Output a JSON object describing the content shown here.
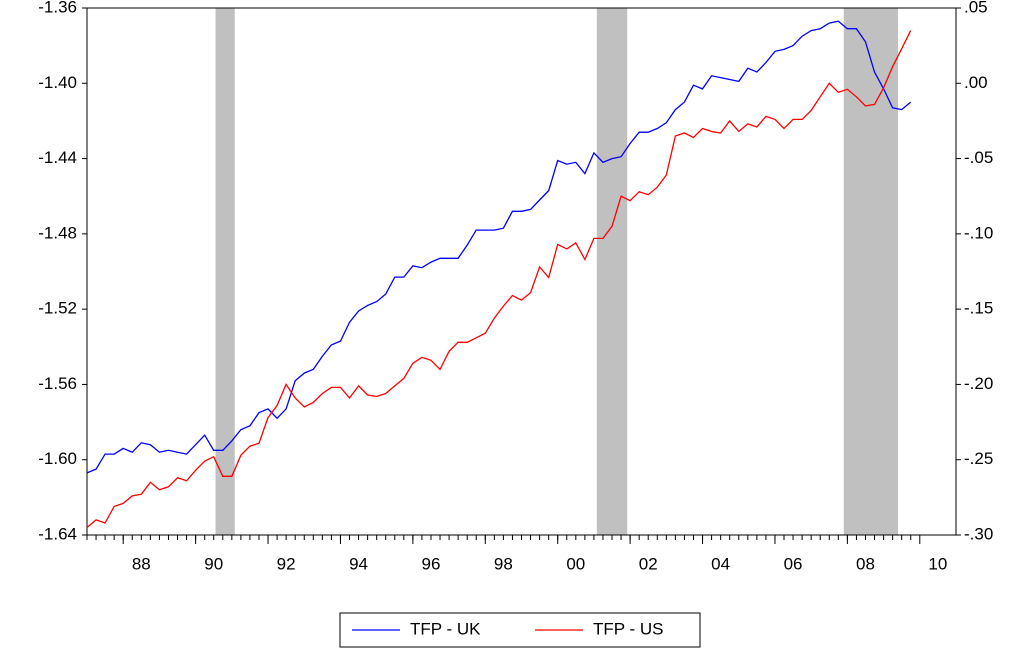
{
  "chart_data": {
    "type": "line",
    "x": [
      1987,
      1987.25,
      1987.5,
      1987.75,
      1988,
      1988.25,
      1988.5,
      1988.75,
      1989,
      1989.25,
      1989.5,
      1989.75,
      1990,
      1990.25,
      1990.5,
      1990.75,
      1991,
      1991.25,
      1991.5,
      1991.75,
      1992,
      1992.25,
      1992.5,
      1992.75,
      1993,
      1993.25,
      1993.5,
      1993.75,
      1994,
      1994.25,
      1994.5,
      1994.75,
      1995,
      1995.25,
      1995.5,
      1995.75,
      1996,
      1996.25,
      1996.5,
      1996.75,
      1997,
      1997.25,
      1997.5,
      1997.75,
      1998,
      1998.25,
      1998.5,
      1998.75,
      1999,
      1999.25,
      1999.5,
      1999.75,
      2000,
      2000.25,
      2000.5,
      2000.75,
      2001,
      2001.25,
      2001.5,
      2001.75,
      2002,
      2002.25,
      2002.5,
      2002.75,
      2003,
      2003.25,
      2003.5,
      2003.75,
      2004,
      2004.25,
      2004.5,
      2004.75,
      2005,
      2005.25,
      2005.5,
      2005.75,
      2006,
      2006.25,
      2006.5,
      2006.75,
      2007,
      2007.25,
      2007.5,
      2007.75,
      2008,
      2008.25,
      2008.5,
      2008.75,
      2009,
      2009.25,
      2009.5,
      2009.75
    ],
    "series": [
      {
        "name": "TFP - UK",
        "color": "#0000ff",
        "axis": "y",
        "values": [
          -1.607,
          -1.605,
          -1.597,
          -1.597,
          -1.594,
          -1.596,
          -1.591,
          -1.592,
          -1.596,
          -1.595,
          -1.596,
          -1.597,
          -1.592,
          -1.587,
          -1.595,
          -1.595,
          -1.59,
          -1.584,
          -1.582,
          -1.575,
          -1.573,
          -1.578,
          -1.573,
          -1.558,
          -1.554,
          -1.552,
          -1.545,
          -1.539,
          -1.537,
          -1.527,
          -1.521,
          -1.518,
          -1.516,
          -1.512,
          -1.503,
          -1.503,
          -1.497,
          -1.498,
          -1.495,
          -1.493,
          -1.493,
          -1.493,
          -1.486,
          -1.478,
          -1.478,
          -1.478,
          -1.477,
          -1.468,
          -1.468,
          -1.467,
          -1.462,
          -1.457,
          -1.441,
          -1.443,
          -1.442,
          -1.448,
          -1.437,
          -1.442,
          -1.44,
          -1.439,
          -1.432,
          -1.426,
          -1.426,
          -1.424,
          -1.421,
          -1.414,
          -1.41,
          -1.401,
          -1.403,
          -1.396,
          -1.397,
          -1.398,
          -1.399,
          -1.392,
          -1.394,
          -1.389,
          -1.383,
          -1.382,
          -1.38,
          -1.375,
          -1.372,
          -1.371,
          -1.368,
          -1.367,
          -1.371,
          -1.371,
          -1.378,
          -1.394,
          -1.403,
          -1.413,
          -1.414,
          -1.41
        ]
      },
      {
        "name": "TFP - US",
        "color": "#ff0000",
        "axis": "y2",
        "values": [
          -0.295,
          -0.29,
          -0.292,
          -0.281,
          -0.279,
          -0.274,
          -0.273,
          -0.265,
          -0.27,
          -0.268,
          -0.262,
          -0.264,
          -0.257,
          -0.251,
          -0.248,
          -0.261,
          -0.261,
          -0.247,
          -0.241,
          -0.239,
          -0.222,
          -0.214,
          -0.2,
          -0.209,
          -0.215,
          -0.212,
          -0.206,
          -0.202,
          -0.202,
          -0.209,
          -0.201,
          -0.207,
          -0.208,
          -0.206,
          -0.201,
          -0.196,
          -0.186,
          -0.182,
          -0.184,
          -0.19,
          -0.178,
          -0.172,
          -0.172,
          -0.169,
          -0.166,
          -0.156,
          -0.148,
          -0.141,
          -0.144,
          -0.139,
          -0.122,
          -0.129,
          -0.107,
          -0.11,
          -0.106,
          -0.117,
          -0.103,
          -0.103,
          -0.095,
          -0.075,
          -0.078,
          -0.072,
          -0.074,
          -0.069,
          -0.061,
          -0.035,
          -0.033,
          -0.036,
          -0.03,
          -0.032,
          -0.033,
          -0.025,
          -0.032,
          -0.027,
          -0.029,
          -0.022,
          -0.024,
          -0.03,
          -0.024,
          -0.024,
          -0.018,
          -0.009,
          0.0,
          -0.006,
          -0.004,
          -0.009,
          -0.015,
          -0.014,
          -0.003,
          0.011,
          0.023,
          0.035
        ]
      }
    ],
    "shaded_periods": [
      [
        1990.55,
        1991.08
      ],
      [
        2001.08,
        2001.92
      ],
      [
        2007.9,
        2009.4
      ]
    ],
    "shade_color": "#c0c0c0",
    "xlim": [
      1987,
      2011
    ],
    "xticks": [
      {
        "value": 1988,
        "label": "88"
      },
      {
        "value": 1990,
        "label": "90"
      },
      {
        "value": 1992,
        "label": "92"
      },
      {
        "value": 1994,
        "label": "94"
      },
      {
        "value": 1996,
        "label": "96"
      },
      {
        "value": 1998,
        "label": "98"
      },
      {
        "value": 2000,
        "label": "00"
      },
      {
        "value": 2002,
        "label": "02"
      },
      {
        "value": 2004,
        "label": "04"
      },
      {
        "value": 2006,
        "label": "06"
      },
      {
        "value": 2008,
        "label": "08"
      },
      {
        "value": 2010,
        "label": "10"
      }
    ],
    "ylim": [
      -1.64,
      -1.36
    ],
    "yticks": [
      -1.64,
      {
        "value": -1.6,
        "label": "-1.60"
      },
      -1.56,
      -1.52,
      -1.48,
      -1.44,
      {
        "value": -1.4,
        "label": "-1.40"
      },
      -1.36
    ],
    "y2lim": [
      -0.3,
      0.05
    ],
    "y2ticks": [
      {
        "value": -0.3,
        "label": "-.30"
      },
      {
        "value": -0.25,
        "label": "-.25"
      },
      {
        "value": -0.2,
        "label": "-.20"
      },
      {
        "value": -0.15,
        "label": "-.15"
      },
      {
        "value": -0.1,
        "label": "-.10"
      },
      {
        "value": -0.05,
        "label": "-.05"
      },
      {
        "value": 0,
        "label": ".00"
      },
      {
        "value": 0.05,
        "label": ".05"
      }
    ],
    "grid": false,
    "legend": "bottom"
  }
}
